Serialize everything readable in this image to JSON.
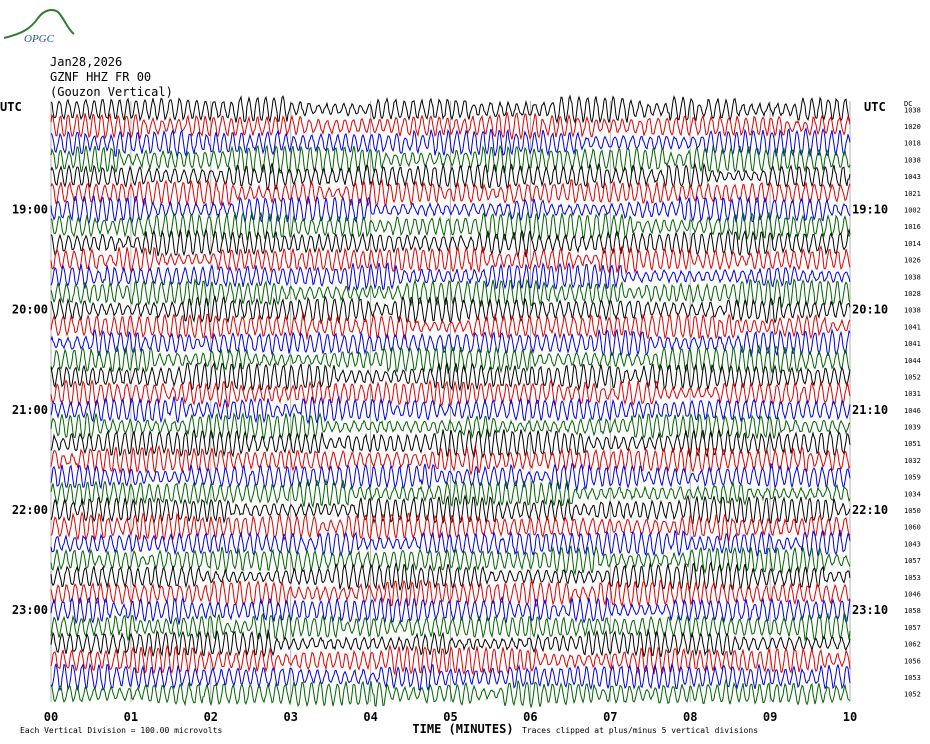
{
  "header": {
    "logo_text": "OPGC",
    "date": "Jan28,2026",
    "station": "GZNF HHZ FR 00",
    "location": "(Gouzon Vertical)"
  },
  "colors": {
    "trace_cycle": [
      "#000000",
      "#e00000",
      "#0000e0",
      "#006400"
    ],
    "grid": "#b0b0b0",
    "logo": "#2e7d32",
    "logo_text": "#1f4f9f"
  },
  "chart_data": {
    "type": "line",
    "title": "",
    "xlabel": "TIME (MINUTES)",
    "ylabel": "",
    "x_ticks": [
      "00",
      "01",
      "02",
      "03",
      "04",
      "05",
      "06",
      "07",
      "08",
      "09",
      "10"
    ],
    "xlim": [
      0,
      10
    ],
    "left_axis_label": "UTC",
    "right_axis_label": "UTC",
    "dc_label": "DC",
    "left_time_labels": [
      {
        "row": 6,
        "text": "19:00"
      },
      {
        "row": 12,
        "text": "20:00"
      },
      {
        "row": 18,
        "text": "21:00"
      },
      {
        "row": 24,
        "text": "22:00"
      },
      {
        "row": 30,
        "text": "23:00"
      }
    ],
    "right_time_labels": [
      {
        "row": 6,
        "text": "19:10"
      },
      {
        "row": 12,
        "text": "20:10"
      },
      {
        "row": 18,
        "text": "21:10"
      },
      {
        "row": 24,
        "text": "22:10"
      },
      {
        "row": 30,
        "text": "23:10"
      }
    ],
    "dc_offsets": [
      "1038",
      "1020",
      "1018",
      "1038",
      "1043",
      "1021",
      "1002",
      "1016",
      "1014",
      "1026",
      "1038",
      "1028",
      "1038",
      "1041",
      "1041",
      "1044",
      "1052",
      "1031",
      "1046",
      "1039",
      "1051",
      "1032",
      "1059",
      "1034",
      "1050",
      "1060",
      "1043",
      "1057",
      "1053",
      "1046",
      "1058",
      "1057",
      "1062",
      "1056",
      "1053",
      "1052"
    ],
    "footnote_left": "Each Vertical Division =  100.00 microvolts",
    "footnote_right": "Traces clipped at plus/minus 5 vertical divisions"
  }
}
